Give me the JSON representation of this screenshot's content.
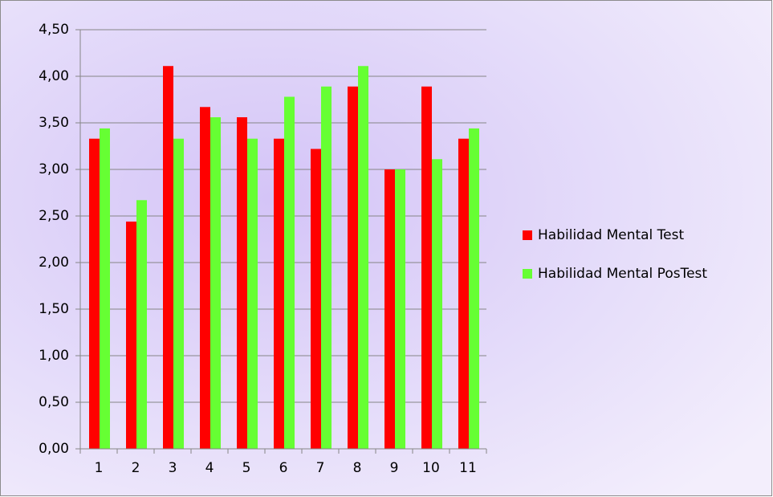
{
  "chart_data": {
    "type": "bar",
    "categories": [
      "1",
      "2",
      "3",
      "4",
      "5",
      "6",
      "7",
      "8",
      "9",
      "10",
      "11"
    ],
    "series": [
      {
        "name": "Habilidad Mental Test",
        "color": "#ff0000",
        "values": [
          3.33,
          2.44,
          4.11,
          3.67,
          3.56,
          3.33,
          3.22,
          3.89,
          3.0,
          3.89,
          3.33
        ]
      },
      {
        "name": "Habilidad Mental PosTest",
        "color": "#66ff33",
        "values": [
          3.44,
          2.67,
          3.33,
          3.56,
          3.33,
          3.78,
          3.89,
          4.11,
          3.0,
          3.11,
          3.44
        ]
      }
    ],
    "ylim": [
      0,
      4.5
    ],
    "yticks": [
      {
        "value": 0,
        "label": "0,00"
      },
      {
        "value": 0.5,
        "label": "0,50"
      },
      {
        "value": 1,
        "label": "1,00"
      },
      {
        "value": 1.5,
        "label": "1,50"
      },
      {
        "value": 2,
        "label": "2,00"
      },
      {
        "value": 2.5,
        "label": "2,50"
      },
      {
        "value": 3,
        "label": "3,00"
      },
      {
        "value": 3.5,
        "label": "3,50"
      },
      {
        "value": 4,
        "label": "4,00"
      },
      {
        "value": 4.5,
        "label": "4,50"
      }
    ],
    "grid": true,
    "legend": "right"
  }
}
